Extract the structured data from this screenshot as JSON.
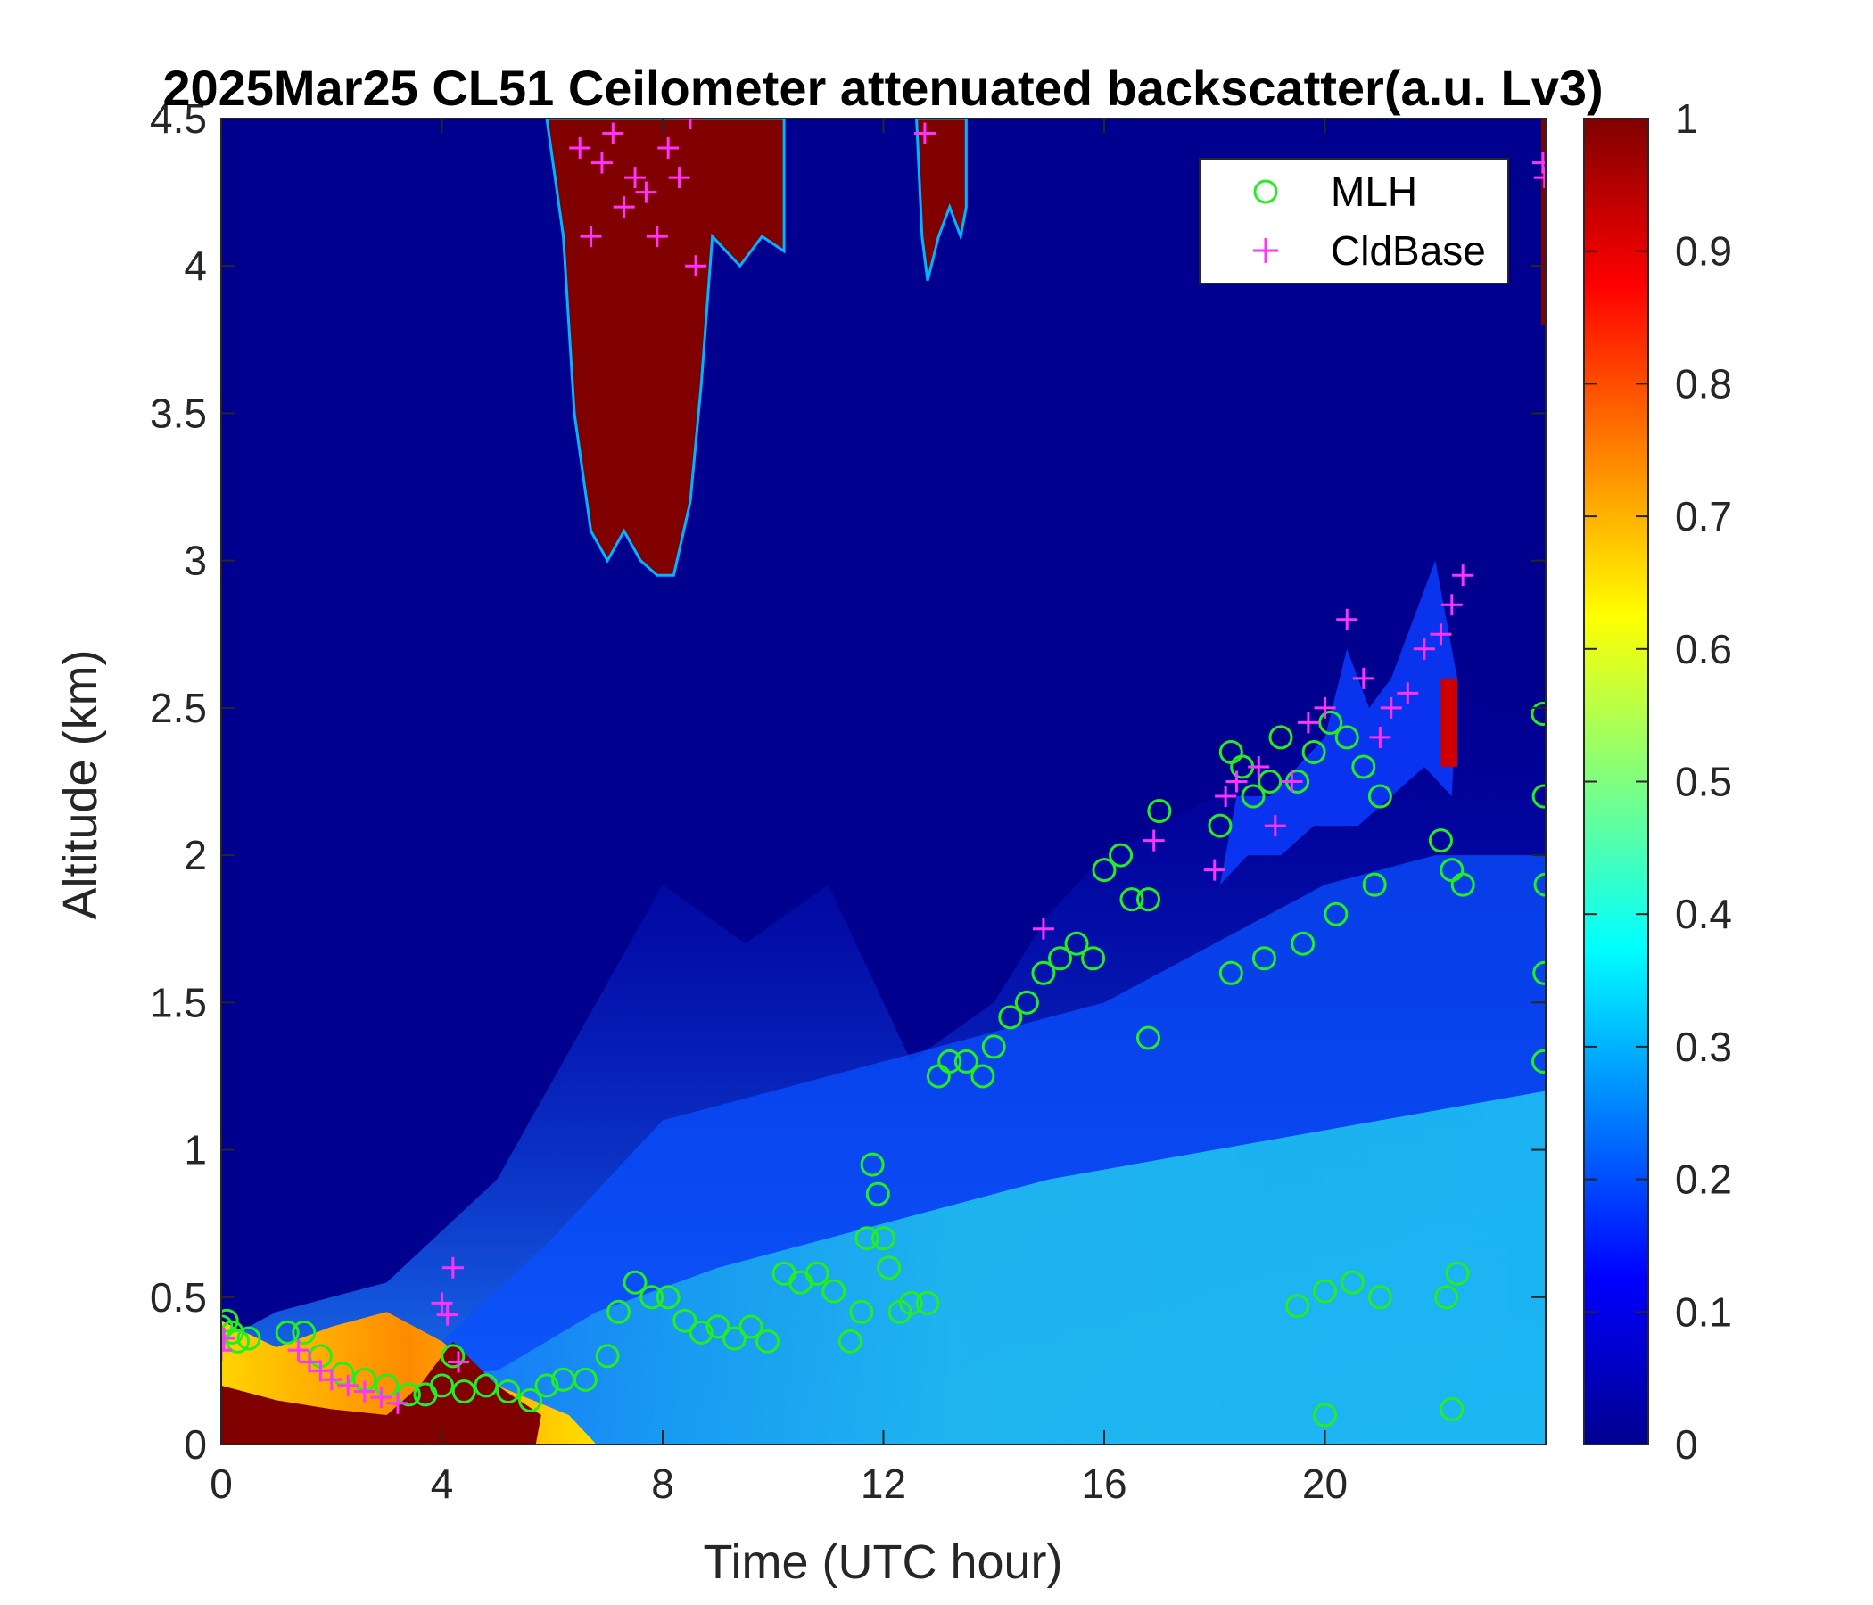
{
  "chart_data": {
    "type": "heatmap",
    "title": "2025Mar25 CL51 Ceilometer attenuated backscatter(a.u. Lv3)",
    "xlabel": "Time (UTC hour)",
    "ylabel": "Altitude (km)",
    "xlim": [
      0,
      24
    ],
    "ylim": [
      0,
      4.5
    ],
    "xticks": [
      0,
      4,
      8,
      12,
      16,
      20
    ],
    "xtick_labels": [
      "0",
      "4",
      "8",
      "12",
      "16",
      "20"
    ],
    "yticks": [
      0,
      0.5,
      1,
      1.5,
      2,
      2.5,
      3,
      3.5,
      4,
      4.5
    ],
    "ytick_labels": [
      "0",
      "0.5",
      "1",
      "1.5",
      "2",
      "2.5",
      "3",
      "3.5",
      "4",
      "4.5"
    ],
    "colorbar": {
      "colormap": "jet",
      "range": [
        0,
        1
      ],
      "ticks": [
        0,
        0.1,
        0.2,
        0.3,
        0.4,
        0.5,
        0.6,
        0.7,
        0.8,
        0.9,
        1
      ],
      "tick_labels": [
        "0",
        "0.1",
        "0.2",
        "0.3",
        "0.4",
        "0.5",
        "0.6",
        "0.7",
        "0.8",
        "0.9",
        "1"
      ]
    },
    "legend": {
      "placement": "top-right",
      "entries": [
        "MLH",
        "CldBase"
      ]
    },
    "colors": {
      "mlh": "#22ee22",
      "cldbase": "#ff33ff",
      "background": "#00008f"
    },
    "series": [
      {
        "name": "MLH",
        "marker": "circle",
        "x": [
          0.0,
          0.1,
          0.2,
          0.3,
          0.5,
          1.2,
          1.5,
          1.8,
          2.2,
          2.6,
          3.0,
          3.4,
          3.7,
          4.0,
          4.2,
          4.4,
          4.8,
          5.2,
          5.6,
          5.9,
          6.2,
          6.6,
          7.0,
          7.2,
          7.5,
          7.8,
          8.1,
          8.4,
          8.7,
          9.0,
          9.3,
          9.6,
          9.9,
          10.2,
          10.5,
          10.8,
          11.1,
          11.4,
          11.6,
          11.7,
          11.8,
          11.9,
          12.0,
          12.1,
          12.3,
          12.5,
          12.8,
          13.0,
          13.2,
          13.5,
          13.8,
          14.0,
          14.3,
          14.6,
          14.9,
          15.2,
          15.5,
          15.8,
          16.0,
          16.3,
          16.5,
          16.8,
          17.0,
          16.8,
          18.1,
          18.3,
          18.5,
          18.7,
          19.0,
          19.2,
          19.5,
          19.8,
          20.1,
          20.4,
          20.7,
          21.0,
          18.3,
          18.9,
          19.6,
          20.2,
          20.9,
          19.5,
          20.0,
          20.5,
          21.0,
          20.0,
          22.1,
          22.3,
          22.5,
          22.2,
          22.4,
          22.3,
          23.95,
          23.97,
          24.0,
          23.98,
          23.96
        ],
        "y": [
          0.4,
          0.42,
          0.38,
          0.35,
          0.36,
          0.38,
          0.38,
          0.3,
          0.24,
          0.22,
          0.2,
          0.17,
          0.17,
          0.2,
          0.3,
          0.18,
          0.2,
          0.18,
          0.15,
          0.2,
          0.22,
          0.22,
          0.3,
          0.45,
          0.55,
          0.5,
          0.5,
          0.42,
          0.38,
          0.4,
          0.36,
          0.4,
          0.35,
          0.58,
          0.55,
          0.58,
          0.52,
          0.35,
          0.45,
          0.7,
          0.95,
          0.85,
          0.7,
          0.6,
          0.45,
          0.48,
          0.48,
          1.25,
          1.3,
          1.3,
          1.25,
          1.35,
          1.45,
          1.5,
          1.6,
          1.65,
          1.7,
          1.65,
          1.95,
          2.0,
          1.85,
          1.85,
          2.15,
          1.38,
          2.1,
          2.35,
          2.3,
          2.2,
          2.25,
          2.4,
          2.25,
          2.35,
          2.45,
          2.4,
          2.3,
          2.2,
          1.6,
          1.65,
          1.7,
          1.8,
          1.9,
          0.47,
          0.52,
          0.55,
          0.5,
          0.1,
          2.05,
          1.95,
          1.9,
          0.5,
          0.58,
          0.12,
          2.48,
          2.2,
          1.9,
          1.6,
          1.3
        ]
      },
      {
        "name": "CldBase",
        "marker": "plus",
        "x": [
          0.0,
          0.05,
          1.4,
          1.6,
          1.8,
          2.0,
          2.3,
          2.6,
          2.9,
          3.2,
          4.0,
          4.1,
          4.2,
          4.3,
          6.5,
          6.7,
          6.9,
          7.1,
          7.3,
          7.5,
          7.7,
          7.9,
          8.1,
          8.3,
          8.5,
          8.6,
          12.75,
          14.9,
          16.9,
          18.0,
          18.2,
          18.4,
          18.8,
          19.1,
          19.4,
          19.7,
          20.0,
          20.4,
          20.7,
          21.0,
          21.2,
          21.5,
          21.8,
          22.1,
          22.3,
          22.5,
          23.95,
          23.98
        ],
        "y": [
          0.32,
          0.36,
          0.32,
          0.28,
          0.25,
          0.22,
          0.2,
          0.18,
          0.16,
          0.14,
          0.48,
          0.44,
          0.6,
          0.28,
          4.4,
          4.1,
          4.35,
          4.45,
          4.2,
          4.3,
          4.25,
          4.1,
          4.4,
          4.3,
          4.5,
          4.0,
          4.45,
          1.75,
          2.05,
          1.95,
          2.2,
          2.25,
          2.3,
          2.1,
          2.25,
          2.45,
          2.5,
          2.8,
          2.6,
          2.4,
          2.5,
          2.55,
          2.7,
          2.75,
          2.85,
          2.95,
          4.35,
          4.3
        ]
      }
    ]
  }
}
